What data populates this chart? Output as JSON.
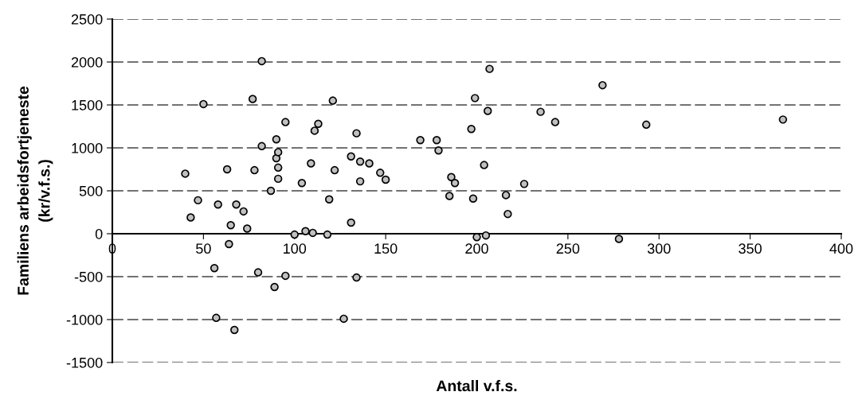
{
  "chart_data": {
    "type": "scatter",
    "xlabel": "Antall v.f.s.",
    "ylabel": "Familiens arbeidsfortjeneste\n(kr/v.f.s.)",
    "xlim": [
      0,
      400
    ],
    "xticks": [
      0,
      50,
      100,
      150,
      200,
      250,
      300,
      350,
      400
    ],
    "ylim": [
      -1500,
      2500
    ],
    "yticks": [
      -1500,
      -1000,
      -500,
      0,
      500,
      1000,
      1500,
      2000,
      2500
    ],
    "grid": "y",
    "marker": "circle",
    "legend": false,
    "series": [
      {
        "color": "#c0c0c0",
        "x": [
          40,
          43,
          47,
          50,
          56,
          57,
          58,
          63,
          64,
          65,
          67,
          68,
          72,
          74,
          77,
          78,
          80,
          82,
          82,
          87,
          89,
          90,
          90,
          91,
          91,
          91,
          95,
          95,
          100,
          104,
          106,
          109,
          110,
          111,
          113,
          118,
          119,
          121,
          122,
          127,
          131,
          131,
          134,
          134,
          136,
          136,
          141,
          147,
          150,
          169,
          178,
          179,
          185,
          186,
          188,
          197,
          198,
          199,
          200,
          204,
          205,
          206,
          207,
          216,
          217,
          226,
          235,
          243,
          269,
          278,
          293,
          368
        ],
        "values": [
          700,
          190,
          390,
          1510,
          -400,
          -980,
          340,
          750,
          -120,
          100,
          -1120,
          340,
          260,
          60,
          1570,
          740,
          -450,
          1020,
          2010,
          500,
          -620,
          1100,
          880,
          950,
          770,
          640,
          1300,
          -490,
          -10,
          590,
          30,
          820,
          10,
          1200,
          1280,
          -10,
          400,
          1550,
          740,
          -990,
          900,
          130,
          1170,
          -510,
          610,
          840,
          820,
          710,
          630,
          1090,
          1090,
          970,
          440,
          660,
          590,
          1220,
          410,
          1580,
          -40,
          800,
          -20,
          1430,
          1920,
          450,
          230,
          580,
          1420,
          1300,
          1730,
          -60,
          1270,
          1330
        ]
      }
    ]
  }
}
